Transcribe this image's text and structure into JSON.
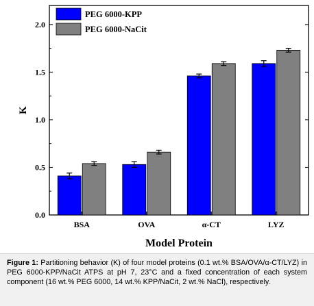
{
  "chart_data": {
    "type": "bar",
    "categories": [
      "BSA",
      "OVA",
      "α-CT",
      "LYZ"
    ],
    "series": [
      {
        "name": "PEG 6000-KPP",
        "color": "#0000ff",
        "values": [
          0.41,
          0.53,
          1.46,
          1.59
        ],
        "errors": [
          0.03,
          0.03,
          0.02,
          0.03
        ]
      },
      {
        "name": "PEG 6000-NaCit",
        "color": "#808080",
        "values": [
          0.54,
          0.66,
          1.59,
          1.73
        ],
        "errors": [
          0.02,
          0.02,
          0.02,
          0.02
        ]
      }
    ],
    "xlabel": "Model Protein",
    "ylabel": "K",
    "ylim": [
      0.0,
      2.2
    ],
    "yticks": [
      "0.0",
      "0.5",
      "1.0",
      "1.5",
      "2.0"
    ],
    "ytick_values": [
      0.0,
      0.5,
      1.0,
      1.5,
      2.0
    ],
    "legend_position": "top-left",
    "grid": false,
    "error_bar_color": "#000000"
  },
  "caption": {
    "label": "Figure 1:",
    "text": " Partitioning behavior (K) of four model proteins (0.1 wt.% BSA/OVA/α-CT/LYZ) in PEG 6000-KPP/NaCit ATPS at pH 7, 23°C and a fixed concentration of each system component (16 wt.% PEG 6000, 14 wt.% KPP/NaCit, 2 wt.% NaCl), respectively."
  }
}
